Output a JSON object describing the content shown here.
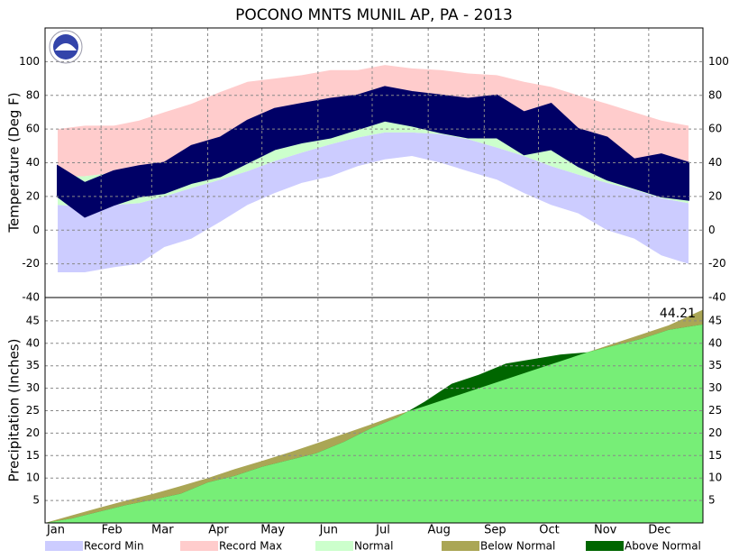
{
  "chart_data": [
    {
      "type": "temperature",
      "title": "POCONO MNTS MUNIL AP, PA - 2013",
      "ylabel": "Temperature (Deg F)",
      "x": [
        8,
        23,
        39,
        53,
        67,
        82,
        98,
        113,
        128,
        143,
        159,
        174,
        189,
        204,
        220,
        235,
        251,
        266,
        281,
        296,
        312,
        327,
        342,
        357
      ],
      "xlim": [
        1,
        365
      ],
      "xticks": [
        {
          "value": 1,
          "label": "Jan"
        },
        {
          "value": 32,
          "label": "Feb"
        },
        {
          "value": 60,
          "label": "Mar"
        },
        {
          "value": 91,
          "label": "Apr"
        },
        {
          "value": 121,
          "label": "May"
        },
        {
          "value": 152,
          "label": "Jun"
        },
        {
          "value": 182,
          "label": "Jul"
        },
        {
          "value": 213,
          "label": "Aug"
        },
        {
          "value": 244,
          "label": "Sep"
        },
        {
          "value": 274,
          "label": "Oct"
        },
        {
          "value": 305,
          "label": "Nov"
        },
        {
          "value": 335,
          "label": "Dec"
        }
      ],
      "ylim": [
        -40,
        120
      ],
      "yticks": [
        -40,
        -20,
        0,
        20,
        40,
        60,
        80,
        100
      ],
      "grid": true,
      "series": [
        {
          "name": "Record Min",
          "color": "#ccccff",
          "values": [
            -25,
            -25,
            -22,
            -20,
            -10,
            -5,
            5,
            15,
            22,
            28,
            32,
            38,
            42,
            44,
            40,
            35,
            30,
            22,
            15,
            10,
            0,
            -5,
            -15,
            -20
          ]
        },
        {
          "name": "Record Max",
          "color": "#ffcccc",
          "values": [
            60,
            62,
            62,
            65,
            70,
            75,
            82,
            88,
            90,
            92,
            95,
            95,
            98,
            96,
            95,
            93,
            92,
            88,
            85,
            80,
            75,
            70,
            65,
            62
          ]
        },
        {
          "name": "Normal",
          "color": "#ccffcc",
          "high": [
            32,
            32,
            34,
            36,
            40,
            46,
            52,
            58,
            64,
            69,
            73,
            76,
            78,
            78,
            77,
            74,
            70,
            64,
            58,
            52,
            46,
            41,
            36,
            33
          ],
          "low": [
            15,
            14,
            15,
            16,
            20,
            25,
            30,
            35,
            41,
            46,
            51,
            55,
            58,
            58,
            57,
            54,
            49,
            44,
            38,
            33,
            28,
            24,
            19,
            16
          ]
        }
      ],
      "observed": {
        "color": "#000066",
        "high": [
          38,
          28,
          35,
          38,
          40,
          50,
          55,
          65,
          72,
          75,
          78,
          80,
          85,
          82,
          80,
          78,
          80,
          70,
          75,
          60,
          55,
          42,
          45,
          40
        ],
        "low": [
          20,
          8,
          15,
          20,
          22,
          28,
          32,
          40,
          48,
          52,
          55,
          60,
          65,
          62,
          58,
          55,
          55,
          45,
          48,
          38,
          30,
          25,
          20,
          18
        ]
      }
    },
    {
      "type": "precipitation",
      "ylabel": "Precipitation (Inches)",
      "x": [
        1,
        16,
        31,
        46,
        61,
        76,
        91,
        106,
        121,
        136,
        151,
        166,
        181,
        196,
        211,
        226,
        241,
        256,
        271,
        286,
        301,
        316,
        331,
        346,
        365
      ],
      "xlim": [
        1,
        365
      ],
      "ylim": [
        0,
        50
      ],
      "yticks": [
        5,
        10,
        15,
        20,
        25,
        30,
        35,
        40,
        45
      ],
      "series": [
        {
          "name": "Below Normal",
          "color": "#aaa655",
          "values": [
            0,
            1.7,
            3.4,
            5,
            6.5,
            8.2,
            10,
            12,
            13.8,
            15.7,
            17.7,
            19.8,
            21.9,
            24.1,
            26,
            28,
            30,
            32,
            34,
            36,
            38,
            40,
            42,
            44,
            47.5
          ]
        },
        {
          "name": "Above Normal",
          "color": "#006600",
          "values": [
            0,
            1,
            2.5,
            4,
            5.2,
            6.5,
            9,
            10.5,
            12.5,
            14,
            15.5,
            18,
            21,
            23.5,
            27,
            31,
            33,
            35.5,
            36.5,
            37.5,
            38,
            39.5,
            41,
            43,
            44.21
          ]
        }
      ],
      "fill_color": "#77ee77",
      "value_label": "44.21"
    }
  ]
}
